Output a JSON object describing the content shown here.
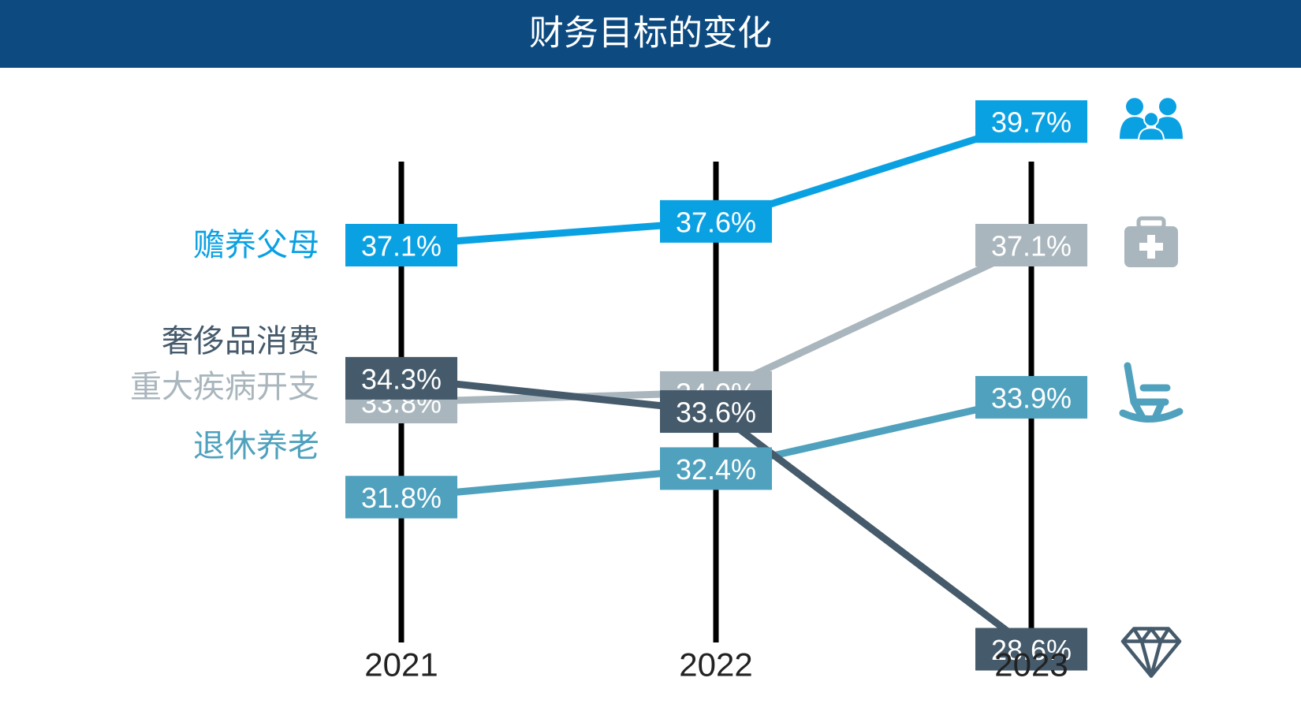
{
  "chart_data": {
    "type": "line",
    "title": "财务目标的变化",
    "x": [
      "2021",
      "2022",
      "2023"
    ],
    "series": [
      {
        "name": "赡养父母",
        "values": [
          37.1,
          37.6,
          39.7
        ],
        "labels": [
          "37.1%",
          "37.6%",
          "39.7%"
        ],
        "color": "#0aa1e3",
        "icon": "family-icon"
      },
      {
        "name": "重大疾病开支",
        "values": [
          33.8,
          34.0,
          37.1
        ],
        "labels": [
          "33.8%",
          "34.0%",
          "37.1%"
        ],
        "color": "#a9b6bd",
        "icon": "medical-kit-icon"
      },
      {
        "name": "退休养老",
        "values": [
          31.8,
          32.4,
          33.9
        ],
        "labels": [
          "31.8%",
          "32.4%",
          "33.9%"
        ],
        "color": "#4fa1bd",
        "icon": "rocking-chair-icon"
      },
      {
        "name": "奢侈品消费",
        "values": [
          34.3,
          33.6,
          28.6
        ],
        "labels": [
          "34.3%",
          "33.6%",
          "28.6%"
        ],
        "color": "#455a6b",
        "icon": "diamond-icon"
      }
    ],
    "header_color": "#0c4a80"
  }
}
